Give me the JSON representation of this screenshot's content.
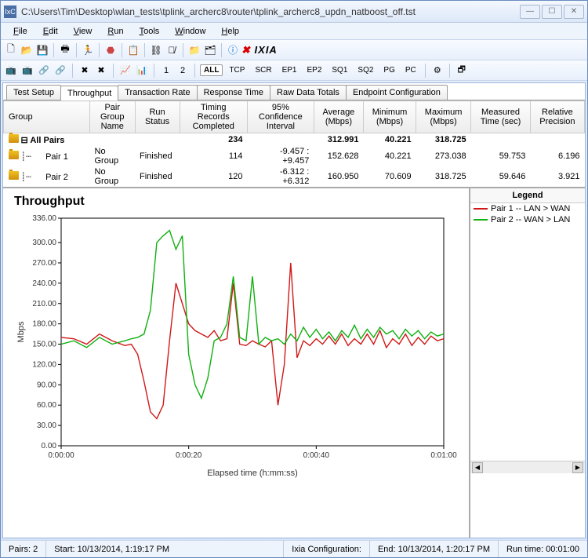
{
  "window": {
    "title": "C:\\Users\\Tim\\Desktop\\wlan_tests\\tplink_archerc8\\router\\tplink_archerc8_updn_natboost_off.tst"
  },
  "menu": [
    "File",
    "Edit",
    "View",
    "Run",
    "Tools",
    "Window",
    "Help"
  ],
  "tabs": [
    "Test Setup",
    "Throughput",
    "Transaction Rate",
    "Response Time",
    "Raw Data Totals",
    "Endpoint Configuration"
  ],
  "activeTab": "Throughput",
  "columns": [
    "Group",
    "Pair Group Name",
    "Run Status",
    "Timing Records Completed",
    "95% Confidence Interval",
    "Average (Mbps)",
    "Minimum (Mbps)",
    "Maximum (Mbps)",
    "Measured Time (sec)",
    "Relative Precision"
  ],
  "rows": [
    {
      "bold": true,
      "cells": [
        "All Pairs",
        "",
        "",
        "234",
        "",
        "312.991",
        "40.221",
        "318.725",
        "",
        ""
      ]
    },
    {
      "bold": false,
      "cells": [
        "Pair 1",
        "No Group",
        "Finished",
        "114",
        "-9.457 : +9.457",
        "152.628",
        "40.221",
        "273.038",
        "59.753",
        "6.196"
      ]
    },
    {
      "bold": false,
      "cells": [
        "Pair 2",
        "No Group",
        "Finished",
        "120",
        "-6.312 : +6.312",
        "160.950",
        "70.609",
        "318.725",
        "59.646",
        "3.921"
      ]
    }
  ],
  "chart": {
    "title": "Throughput",
    "ylabel": "Mbps",
    "xlabel": "Elapsed time (h:mm:ss)",
    "xticks": [
      "0:00:00",
      "0:00:20",
      "0:00:40",
      "0:01:00"
    ],
    "yticks": [
      0.0,
      30.0,
      60.0,
      90.0,
      120.0,
      150.0,
      180.0,
      210.0,
      240.0,
      270.0,
      300.0,
      336.0
    ],
    "xmax": 60,
    "ymax": 336,
    "plot_bg": "#ffffff",
    "axis_color": "#000000",
    "series": [
      {
        "name": "Pair 1 -- LAN > WAN",
        "color": "#d01818",
        "points": [
          [
            0,
            160
          ],
          [
            2,
            158
          ],
          [
            4,
            150
          ],
          [
            6,
            165
          ],
          [
            8,
            155
          ],
          [
            10,
            148
          ],
          [
            11,
            150
          ],
          [
            12,
            135
          ],
          [
            13,
            95
          ],
          [
            14,
            50
          ],
          [
            15,
            40
          ],
          [
            16,
            60
          ],
          [
            17,
            155
          ],
          [
            18,
            240
          ],
          [
            19,
            210
          ],
          [
            20,
            180
          ],
          [
            21,
            170
          ],
          [
            22,
            165
          ],
          [
            23,
            160
          ],
          [
            24,
            170
          ],
          [
            25,
            155
          ],
          [
            26,
            158
          ],
          [
            27,
            240
          ],
          [
            28,
            150
          ],
          [
            29,
            148
          ],
          [
            30,
            155
          ],
          [
            31,
            150
          ],
          [
            32,
            146
          ],
          [
            33,
            155
          ],
          [
            34,
            60
          ],
          [
            35,
            120
          ],
          [
            36,
            270
          ],
          [
            37,
            130
          ],
          [
            38,
            155
          ],
          [
            39,
            148
          ],
          [
            40,
            158
          ],
          [
            41,
            150
          ],
          [
            42,
            162
          ],
          [
            43,
            150
          ],
          [
            44,
            165
          ],
          [
            45,
            148
          ],
          [
            46,
            158
          ],
          [
            47,
            150
          ],
          [
            48,
            165
          ],
          [
            49,
            150
          ],
          [
            50,
            170
          ],
          [
            51,
            145
          ],
          [
            52,
            158
          ],
          [
            53,
            150
          ],
          [
            54,
            165
          ],
          [
            55,
            148
          ],
          [
            56,
            160
          ],
          [
            57,
            150
          ],
          [
            58,
            162
          ],
          [
            59,
            155
          ],
          [
            60,
            158
          ]
        ]
      },
      {
        "name": "Pair 2 -- WAN > LAN",
        "color": "#10b010",
        "points": [
          [
            0,
            150
          ],
          [
            2,
            155
          ],
          [
            4,
            145
          ],
          [
            6,
            160
          ],
          [
            8,
            150
          ],
          [
            10,
            155
          ],
          [
            11,
            158
          ],
          [
            12,
            160
          ],
          [
            13,
            165
          ],
          [
            14,
            200
          ],
          [
            15,
            300
          ],
          [
            16,
            310
          ],
          [
            17,
            318
          ],
          [
            18,
            290
          ],
          [
            19,
            310
          ],
          [
            20,
            135
          ],
          [
            21,
            90
          ],
          [
            22,
            70
          ],
          [
            23,
            100
          ],
          [
            24,
            155
          ],
          [
            25,
            160
          ],
          [
            26,
            180
          ],
          [
            27,
            250
          ],
          [
            28,
            160
          ],
          [
            29,
            155
          ],
          [
            30,
            250
          ],
          [
            31,
            150
          ],
          [
            32,
            160
          ],
          [
            33,
            155
          ],
          [
            34,
            158
          ],
          [
            35,
            150
          ],
          [
            36,
            165
          ],
          [
            37,
            155
          ],
          [
            38,
            175
          ],
          [
            39,
            160
          ],
          [
            40,
            172
          ],
          [
            41,
            158
          ],
          [
            42,
            168
          ],
          [
            43,
            155
          ],
          [
            44,
            170
          ],
          [
            45,
            160
          ],
          [
            46,
            178
          ],
          [
            47,
            158
          ],
          [
            48,
            172
          ],
          [
            49,
            160
          ],
          [
            50,
            175
          ],
          [
            51,
            165
          ],
          [
            52,
            170
          ],
          [
            53,
            158
          ],
          [
            54,
            172
          ],
          [
            55,
            162
          ],
          [
            56,
            170
          ],
          [
            57,
            158
          ],
          [
            58,
            168
          ],
          [
            59,
            162
          ],
          [
            60,
            165
          ]
        ]
      }
    ]
  },
  "legend": {
    "title": "Legend"
  },
  "status": {
    "pairs": "Pairs: 2",
    "start": "Start: 10/13/2014, 1:19:17 PM",
    "ixia": "Ixia Configuration:",
    "end": "End: 10/13/2014, 1:20:17 PM",
    "run": "Run time: 00:01:00"
  },
  "filters": [
    "ALL",
    "TCP",
    "SCR",
    "EP1",
    "EP2",
    "SQ1",
    "SQ2",
    "PG",
    "PC"
  ]
}
